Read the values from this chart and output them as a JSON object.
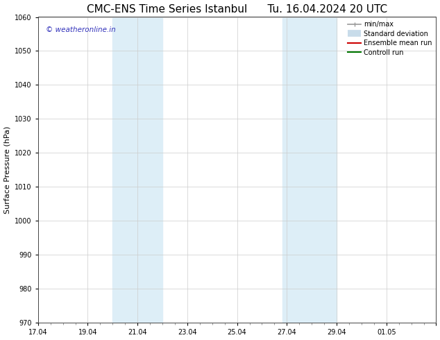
{
  "title": "CMC-ENS Time Series Istanbul      Tu. 16.04.2024 20 UTC",
  "ylabel": "Surface Pressure (hPa)",
  "ylim": [
    970,
    1060
  ],
  "yticks": [
    970,
    980,
    990,
    1000,
    1010,
    1020,
    1030,
    1040,
    1050,
    1060
  ],
  "xlim": [
    0,
    16
  ],
  "xtick_positions": [
    0,
    2,
    4,
    6,
    8,
    10,
    12,
    14,
    16
  ],
  "xtick_labels": [
    "17.04",
    "19.04",
    "21.04",
    "23.04",
    "25.04",
    "27.04",
    "29.04",
    "01.05",
    ""
  ],
  "shaded_bands": [
    {
      "x_start": 3.0,
      "x_end": 3.83,
      "color": "#ddeef8"
    },
    {
      "x_start": 3.83,
      "x_end": 5.0,
      "color": "#ddeef8"
    },
    {
      "x_start": 9.83,
      "x_end": 10.5,
      "color": "#ddeef8"
    },
    {
      "x_start": 10.5,
      "x_end": 12.0,
      "color": "#ddeef8"
    }
  ],
  "watermark_text": "© weatheronline.in",
  "watermark_color": "#3333bb",
  "background_color": "#ffffff",
  "grid_color": "#cccccc",
  "legend_entries": [
    {
      "label": "min/max",
      "color": "#999999",
      "lw": 1.2
    },
    {
      "label": "Standard deviation",
      "color": "#c8dcea",
      "lw": 7
    },
    {
      "label": "Ensemble mean run",
      "color": "#cc0000",
      "lw": 1.5
    },
    {
      "label": "Controll run",
      "color": "#007700",
      "lw": 1.5
    }
  ],
  "title_fontsize": 11,
  "ylabel_fontsize": 8,
  "tick_fontsize": 7,
  "watermark_fontsize": 7.5,
  "legend_fontsize": 7
}
